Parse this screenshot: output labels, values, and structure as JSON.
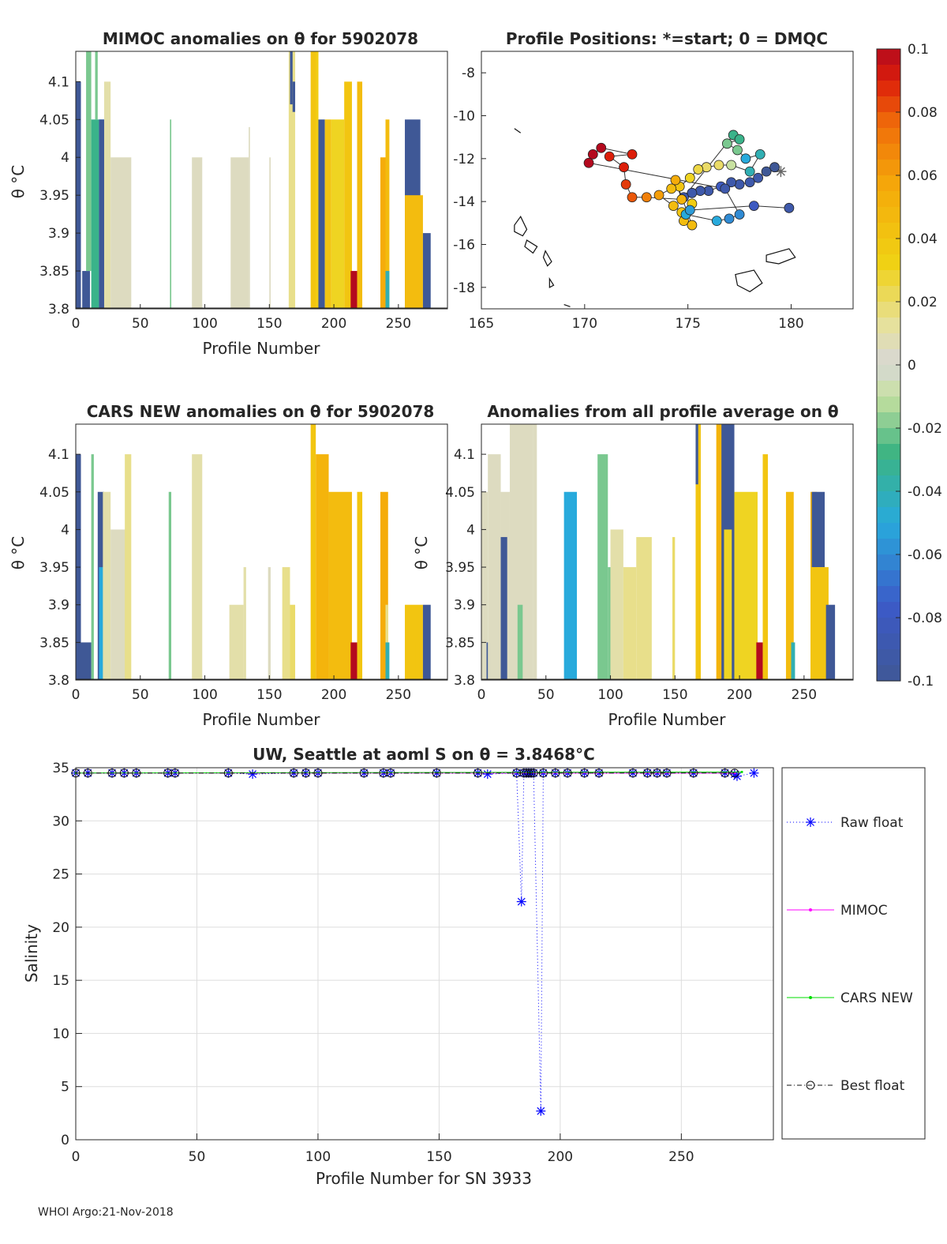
{
  "footer": "WHOI Argo:21-Nov-2018",
  "colorbar": {
    "ticks": [
      "0.1",
      "0.08",
      "0.06",
      "0.04",
      "0.02",
      "0",
      "-0.02",
      "-0.04",
      "-0.06",
      "-0.08",
      "-0.1"
    ],
    "range": [
      -0.1,
      0.1
    ]
  },
  "chart_data": [
    {
      "id": "mimoc",
      "type": "heatmap",
      "title": "MIMOC anomalies on θ  for 5902078",
      "xlabel": "Profile Number",
      "ylabel": "θ °C",
      "xlim": [
        0,
        288
      ],
      "ylim": [
        3.8,
        4.14
      ],
      "xticks": [
        "0",
        "50",
        "100",
        "150",
        "200",
        "250"
      ],
      "yticks": [
        "3.8",
        "3.85",
        "3.9",
        "3.95",
        "4",
        "4.05",
        "4.1"
      ],
      "columns": [
        [
          0,
          4,
          3.8,
          4.1,
          -0.1
        ],
        [
          5,
          11,
          3.8,
          3.85,
          -0.1
        ],
        [
          8,
          12,
          3.85,
          4.14,
          -0.02
        ],
        [
          12,
          18,
          3.8,
          4.05,
          -0.03
        ],
        [
          15,
          17,
          4.05,
          4.14,
          -0.02
        ],
        [
          18,
          22,
          3.8,
          4.05,
          -0.05
        ],
        [
          18,
          22,
          3.8,
          4.05,
          -0.1
        ],
        [
          22,
          27,
          3.8,
          4.1,
          0.01
        ],
        [
          27,
          43,
          3.8,
          4.0,
          0.005
        ],
        [
          73,
          74,
          3.8,
          4.05,
          -0.02
        ],
        [
          90,
          98,
          3.8,
          4.0,
          0.005
        ],
        [
          120,
          134,
          3.8,
          4.0,
          0.005
        ],
        [
          134,
          135,
          3.8,
          4.04,
          0.005
        ],
        [
          150,
          151,
          3.8,
          4.0,
          0.005
        ],
        [
          165,
          170,
          3.8,
          4.14,
          0.015
        ],
        [
          166,
          168,
          4.07,
          4.14,
          -0.1
        ],
        [
          168,
          170,
          4.06,
          4.1,
          -0.1
        ],
        [
          182,
          188,
          3.8,
          4.14,
          0.04
        ],
        [
          186,
          188,
          3.8,
          4.14,
          0.035
        ],
        [
          188,
          193,
          3.8,
          4.05,
          -0.1
        ],
        [
          193,
          198,
          3.8,
          4.05,
          0.04
        ],
        [
          198,
          208,
          3.8,
          4.05,
          0.03
        ],
        [
          208,
          214,
          3.8,
          4.1,
          0.04
        ],
        [
          213,
          218,
          3.8,
          3.85,
          0.1
        ],
        [
          218,
          222,
          3.8,
          4.1,
          0.045
        ],
        [
          236,
          240,
          3.8,
          4.0,
          0.055
        ],
        [
          240,
          242,
          3.8,
          3.89,
          0.06
        ],
        [
          240,
          243,
          3.8,
          4.05,
          0.045
        ],
        [
          240,
          243,
          3.8,
          3.85,
          -0.04
        ],
        [
          255,
          267,
          3.8,
          4.05,
          -0.1
        ],
        [
          255,
          269,
          3.8,
          3.95,
          0.045
        ],
        [
          269,
          275,
          3.8,
          3.9,
          -0.1
        ]
      ]
    },
    {
      "id": "positions",
      "type": "scatter",
      "title": "Profile Positions: *=start; 0 = DMQC",
      "xlabel": "",
      "ylabel": "",
      "xlim": [
        165,
        183
      ],
      "ylim": [
        -19.0,
        -7.0
      ],
      "xticks": [
        "165",
        "170",
        "175",
        "180"
      ],
      "yticks": [
        "-8",
        "-10",
        "-12",
        "-14",
        "-16",
        "-18"
      ],
      "points": [
        [
          179.5,
          -12.6,
          -0.02,
          1
        ],
        [
          179.2,
          -12.4,
          -0.1,
          0
        ],
        [
          178.8,
          -12.6,
          -0.1,
          0
        ],
        [
          178.4,
          -12.9,
          -0.09,
          0
        ],
        [
          178.0,
          -13.1,
          -0.09,
          0
        ],
        [
          177.5,
          -13.2,
          -0.09,
          0
        ],
        [
          177.1,
          -13.1,
          -0.09,
          0
        ],
        [
          176.6,
          -13.3,
          -0.08,
          0
        ],
        [
          176.0,
          -13.5,
          -0.09,
          0
        ],
        [
          175.6,
          -13.5,
          -0.09,
          0
        ],
        [
          175.2,
          -13.6,
          -0.09,
          0
        ],
        [
          174.8,
          -13.8,
          -0.09,
          0
        ],
        [
          177.2,
          -10.9,
          -0.03,
          0
        ],
        [
          177.5,
          -11.1,
          -0.03,
          0
        ],
        [
          176.9,
          -11.3,
          -0.02,
          0
        ],
        [
          177.4,
          -11.6,
          -0.02,
          0
        ],
        [
          177.8,
          -12.0,
          -0.05,
          0
        ],
        [
          178.5,
          -11.8,
          -0.04,
          0
        ],
        [
          178.0,
          -12.6,
          -0.04,
          0
        ],
        [
          177.1,
          -12.3,
          -0.01,
          0
        ],
        [
          176.5,
          -12.3,
          0.02,
          0
        ],
        [
          175.9,
          -12.4,
          0.02,
          0
        ],
        [
          175.5,
          -12.5,
          0.025,
          0
        ],
        [
          175.1,
          -12.9,
          0.03,
          0
        ],
        [
          174.6,
          -13.3,
          0.04,
          0
        ],
        [
          174.2,
          -13.4,
          0.045,
          0
        ],
        [
          173.6,
          -13.7,
          0.06,
          0
        ],
        [
          174.3,
          -14.2,
          0.045,
          0
        ],
        [
          174.7,
          -14.5,
          0.04,
          0
        ],
        [
          175.2,
          -14.1,
          0.035,
          0
        ],
        [
          174.8,
          -14.9,
          0.045,
          0
        ],
        [
          175.2,
          -15.1,
          0.045,
          0
        ],
        [
          174.4,
          -13.0,
          0.055,
          0
        ],
        [
          174.7,
          -13.9,
          0.05,
          0
        ],
        [
          173.0,
          -13.8,
          0.07,
          0
        ],
        [
          172.3,
          -13.8,
          0.08,
          0
        ],
        [
          172.0,
          -13.2,
          0.085,
          0
        ],
        [
          171.9,
          -12.4,
          0.09,
          0
        ],
        [
          171.2,
          -11.9,
          0.09,
          0
        ],
        [
          172.3,
          -11.8,
          0.09,
          0
        ],
        [
          170.8,
          -11.5,
          0.1,
          0
        ],
        [
          170.4,
          -11.8,
          0.1,
          0
        ],
        [
          170.2,
          -12.2,
          0.1,
          0
        ],
        [
          176.8,
          -13.4,
          -0.09,
          0
        ],
        [
          177.5,
          -14.6,
          -0.06,
          0
        ],
        [
          177.0,
          -14.8,
          -0.06,
          0
        ],
        [
          176.4,
          -14.9,
          -0.05,
          0
        ],
        [
          174.9,
          -14.6,
          -0.05,
          0
        ],
        [
          175.1,
          -14.4,
          -0.055,
          0
        ],
        [
          178.2,
          -14.2,
          -0.08,
          0
        ],
        [
          179.9,
          -14.3,
          -0.09,
          0
        ]
      ]
    },
    {
      "id": "cars",
      "type": "heatmap",
      "title": "CARS NEW anomalies on θ for 5902078",
      "xlabel": "Profile Number",
      "ylabel": "θ °C",
      "xlim": [
        0,
        288
      ],
      "ylim": [
        3.8,
        4.14
      ],
      "xticks": [
        "0",
        "50",
        "100",
        "150",
        "200",
        "250"
      ],
      "yticks": [
        "3.8",
        "3.85",
        "3.9",
        "3.95",
        "4",
        "4.05",
        "4.1"
      ],
      "columns": [
        [
          0,
          4,
          3.8,
          4.1,
          -0.1
        ],
        [
          2,
          12,
          3.8,
          3.85,
          -0.1
        ],
        [
          12,
          14,
          3.8,
          4.1,
          -0.02
        ],
        [
          17,
          22,
          3.8,
          4.05,
          -0.1
        ],
        [
          18,
          22,
          3.8,
          3.95,
          -0.05
        ],
        [
          21,
          27,
          3.8,
          4.05,
          0.01
        ],
        [
          27,
          40,
          3.8,
          4.0,
          0.005
        ],
        [
          38,
          43,
          3.8,
          4.1,
          0.015
        ],
        [
          72,
          74,
          3.8,
          4.05,
          -0.02
        ],
        [
          90,
          98,
          3.8,
          4.1,
          0.01
        ],
        [
          119,
          130,
          3.8,
          3.9,
          0.01
        ],
        [
          130,
          132,
          3.8,
          3.95,
          0.01
        ],
        [
          149,
          151,
          3.8,
          3.95,
          0.005
        ],
        [
          160,
          166,
          3.8,
          3.95,
          0.015
        ],
        [
          166,
          170,
          3.8,
          3.9,
          0.02
        ],
        [
          182,
          186,
          3.8,
          4.14,
          0.04
        ],
        [
          186,
          196,
          3.8,
          4.1,
          0.05
        ],
        [
          196,
          214,
          3.8,
          4.05,
          0.045
        ],
        [
          213,
          218,
          3.8,
          3.85,
          0.1
        ],
        [
          218,
          222,
          3.8,
          4.05,
          0.04
        ],
        [
          236,
          242,
          3.8,
          4.05,
          0.055
        ],
        [
          240,
          242,
          3.8,
          3.9,
          0.015
        ],
        [
          240,
          243,
          3.8,
          3.85,
          -0.04
        ],
        [
          255,
          269,
          3.8,
          3.9,
          0.04
        ],
        [
          269,
          275,
          3.8,
          3.9,
          -0.1
        ],
        [
          263,
          266,
          3.8,
          3.85,
          0.04
        ]
      ]
    },
    {
      "id": "avg",
      "type": "heatmap",
      "title": "Anomalies from all profile average on θ",
      "xlabel": "Profile Number",
      "ylabel": "θ °C",
      "xlim": [
        0,
        288
      ],
      "ylim": [
        3.8,
        4.14
      ],
      "xticks": [
        "0",
        "50",
        "100",
        "150",
        "200",
        "250"
      ],
      "yticks": [
        "3.8",
        "3.85",
        "3.9",
        "3.95",
        "4",
        "4.05",
        "4.1"
      ],
      "columns": [
        [
          0,
          5,
          3.8,
          4.05,
          0.005
        ],
        [
          4,
          10,
          3.8,
          3.85,
          -0.1
        ],
        [
          5,
          15,
          3.8,
          4.1,
          0.005
        ],
        [
          15,
          22,
          3.8,
          4.05,
          0.005
        ],
        [
          15,
          20,
          3.8,
          3.99,
          -0.1
        ],
        [
          22,
          40,
          3.8,
          4.14,
          0.005
        ],
        [
          28,
          32,
          3.8,
          3.9,
          -0.02
        ],
        [
          40,
          43,
          3.8,
          4.14,
          0.005
        ],
        [
          64,
          74,
          3.8,
          4.05,
          -0.05
        ],
        [
          90,
          98,
          3.8,
          4.1,
          -0.02
        ],
        [
          98,
          100,
          3.8,
          3.95,
          -0.02
        ],
        [
          100,
          110,
          3.8,
          4.0,
          0.01
        ],
        [
          110,
          120,
          3.8,
          3.95,
          0.015
        ],
        [
          120,
          132,
          3.8,
          3.99,
          0.015
        ],
        [
          148,
          150,
          3.8,
          3.99,
          0.02
        ],
        [
          166,
          170,
          3.8,
          4.14,
          0.04
        ],
        [
          166,
          168,
          4.06,
          4.14,
          -0.1
        ],
        [
          182,
          188,
          3.8,
          4.14,
          0.05
        ],
        [
          186,
          196,
          3.8,
          4.14,
          -0.1
        ],
        [
          188,
          194,
          3.8,
          4.0,
          0.03
        ],
        [
          196,
          214,
          3.8,
          4.05,
          0.03
        ],
        [
          213,
          218,
          3.8,
          3.85,
          0.1
        ],
        [
          218,
          222,
          3.8,
          4.1,
          0.04
        ],
        [
          236,
          242,
          3.8,
          4.05,
          0.045
        ],
        [
          240,
          243,
          3.8,
          3.85,
          -0.04
        ],
        [
          255,
          260,
          3.8,
          4.05,
          0.05
        ],
        [
          256,
          266,
          3.95,
          4.05,
          -0.1
        ],
        [
          255,
          269,
          3.8,
          3.95,
          0.04
        ],
        [
          267,
          274,
          3.8,
          3.9,
          -0.1
        ]
      ]
    },
    {
      "id": "salinity",
      "type": "line",
      "title": "UW, Seattle at aoml S on θ = 3.8468°C",
      "xlabel": "Profile Number for SN 3933",
      "ylabel": "Salinity",
      "xlim": [
        0,
        288
      ],
      "ylim": [
        0,
        35
      ],
      "xticks": [
        "0",
        "50",
        "100",
        "150",
        "200",
        "250"
      ],
      "yticks": [
        "0",
        "5",
        "10",
        "15",
        "20",
        "25",
        "30",
        "35"
      ],
      "legend": [
        "Raw float",
        "MIMOC",
        "CARS NEW",
        "Best float"
      ],
      "series": [
        {
          "name": "Raw float",
          "x": [
            0,
            5,
            15,
            20,
            25,
            38,
            41,
            63,
            73,
            90,
            95,
            100,
            119,
            127,
            130,
            149,
            166,
            170,
            182,
            184,
            185,
            186,
            187,
            188,
            189,
            192,
            193,
            198,
            203,
            210,
            216,
            230,
            236,
            240,
            244,
            255,
            268,
            272,
            273,
            280
          ],
          "values": [
            34.5,
            34.5,
            34.5,
            34.5,
            34.5,
            34.5,
            34.5,
            34.5,
            34.4,
            34.5,
            34.5,
            34.5,
            34.5,
            34.5,
            34.5,
            34.5,
            34.5,
            34.4,
            34.5,
            22.4,
            34.5,
            34.5,
            34.5,
            34.5,
            34.5,
            2.7,
            34.5,
            34.5,
            34.5,
            34.5,
            34.5,
            34.5,
            34.5,
            34.5,
            34.5,
            34.5,
            34.5,
            34.4,
            34.2,
            34.5
          ]
        },
        {
          "name": "MIMOC",
          "x": [
            0,
            272
          ],
          "values": [
            34.5,
            34.5
          ]
        },
        {
          "name": "CARS NEW",
          "x": [
            0,
            275
          ],
          "values": [
            34.5,
            34.6
          ]
        },
        {
          "name": "Best float",
          "x": [
            0,
            5,
            15,
            20,
            25,
            38,
            41,
            63,
            90,
            95,
            100,
            119,
            127,
            130,
            149,
            166,
            182,
            185,
            186,
            187,
            188,
            189,
            193,
            198,
            203,
            210,
            216,
            230,
            236,
            240,
            244,
            255,
            268,
            272
          ],
          "values": [
            34.5,
            34.5,
            34.5,
            34.5,
            34.5,
            34.5,
            34.5,
            34.5,
            34.5,
            34.5,
            34.5,
            34.5,
            34.5,
            34.5,
            34.5,
            34.5,
            34.5,
            34.5,
            34.5,
            34.5,
            34.5,
            34.5,
            34.5,
            34.5,
            34.5,
            34.5,
            34.5,
            34.5,
            34.5,
            34.5,
            34.5,
            34.5,
            34.5,
            34.5
          ]
        }
      ]
    }
  ]
}
